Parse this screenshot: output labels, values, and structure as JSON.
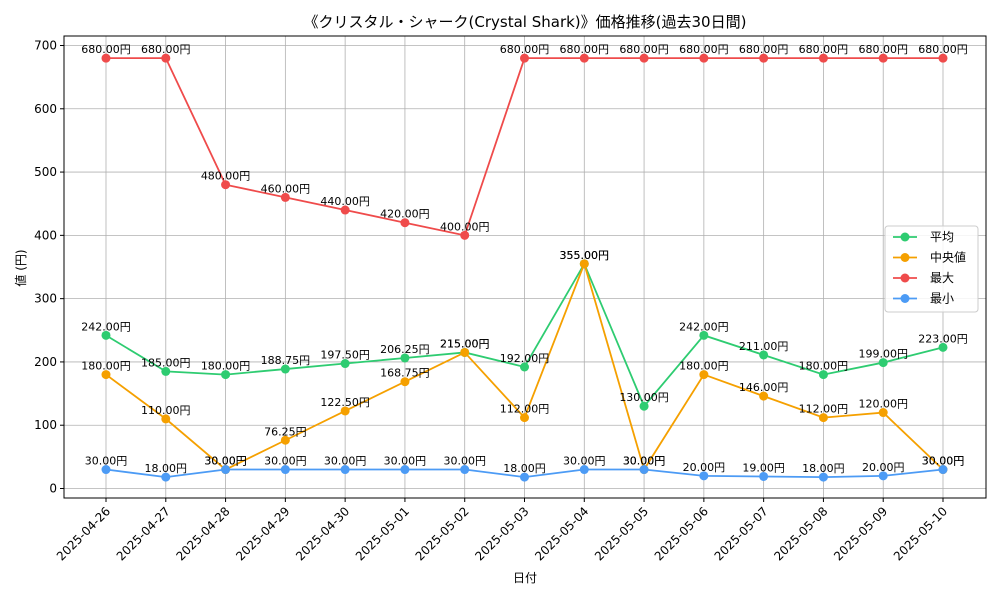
{
  "chart_data": {
    "type": "line",
    "title": "《クリスタル・シャーク(Crystal Shark)》価格推移(過去30日間)",
    "xlabel": "日付",
    "ylabel": "値 (円)",
    "ylim": [
      -15,
      715
    ],
    "yticks": [
      0,
      100,
      200,
      300,
      400,
      500,
      600,
      700
    ],
    "grid": true,
    "legend_position": "right",
    "label_suffix": "円",
    "categories": [
      "2025-04-26",
      "2025-04-27",
      "2025-04-28",
      "2025-04-29",
      "2025-04-30",
      "2025-05-01",
      "2025-05-02",
      "2025-05-03",
      "2025-05-04",
      "2025-05-05",
      "2025-05-06",
      "2025-05-07",
      "2025-05-08",
      "2025-05-09",
      "2025-05-10"
    ],
    "series": [
      {
        "name": "平均",
        "color": "#2ecc71",
        "values": [
          242.0,
          185.0,
          180.0,
          188.75,
          197.5,
          206.25,
          215.0,
          192.0,
          355.0,
          130.0,
          242.0,
          211.0,
          180.0,
          199.0,
          223.0
        ]
      },
      {
        "name": "中央値",
        "color": "#f5a000",
        "values": [
          180.0,
          110.0,
          30.0,
          76.25,
          122.5,
          168.75,
          215.0,
          112.0,
          355.0,
          30.0,
          180.0,
          146.0,
          112.0,
          120.0,
          30.0
        ]
      },
      {
        "name": "最大",
        "color": "#ef4b4b",
        "values": [
          680.0,
          680.0,
          480.0,
          460.0,
          440.0,
          420.0,
          400.0,
          680.0,
          680.0,
          680.0,
          680.0,
          680.0,
          680.0,
          680.0,
          680.0
        ]
      },
      {
        "name": "最小",
        "color": "#4c9bf5",
        "values": [
          30.0,
          18.0,
          30.0,
          30.0,
          30.0,
          30.0,
          30.0,
          18.0,
          30.0,
          30.0,
          20.0,
          19.0,
          18.0,
          20.0,
          30.0
        ]
      }
    ]
  }
}
